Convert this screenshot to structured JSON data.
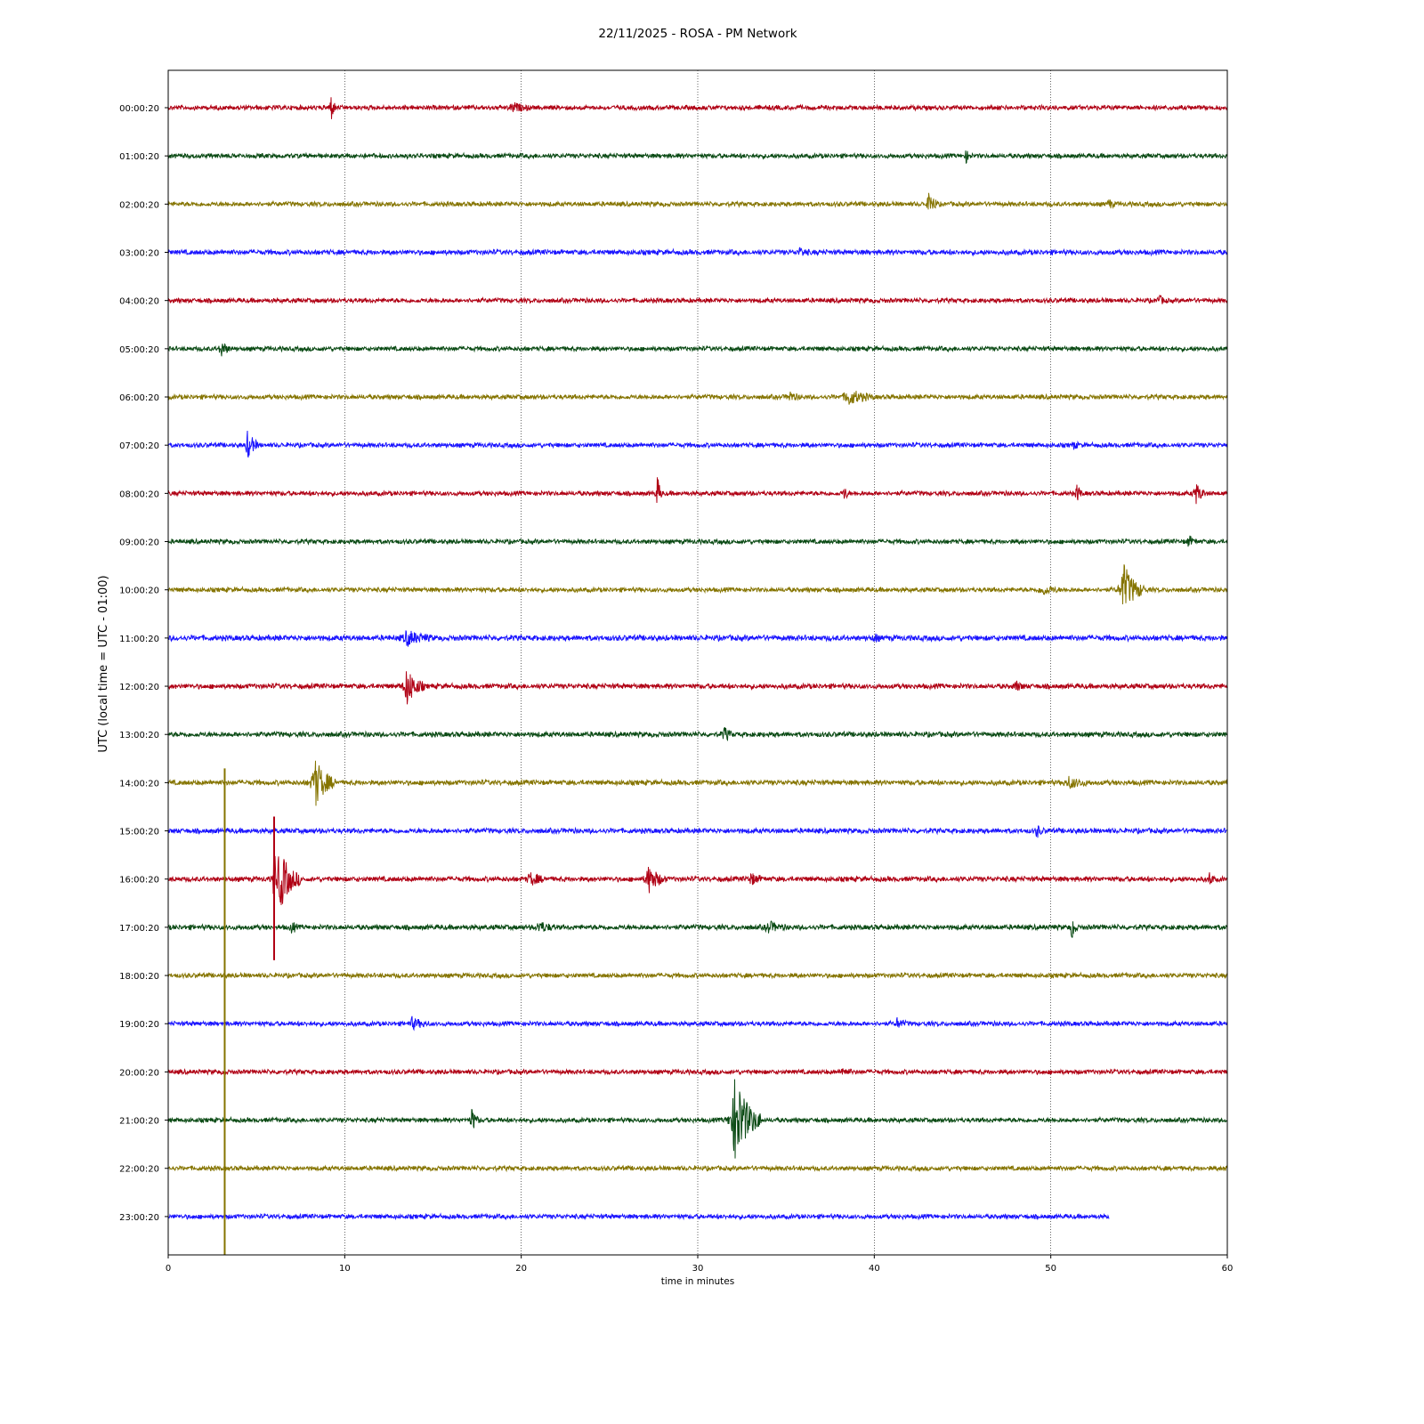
{
  "chart_data": {
    "type": "line",
    "title": "22/11/2025 - ROSA - PM Network",
    "xlabel": "time in minutes",
    "ylabel": "UTC (local time = UTC - 01:00)",
    "xlim": [
      0,
      60
    ],
    "x_ticks": [
      0,
      10,
      20,
      30,
      40,
      50,
      60
    ],
    "grid": "vertical dotted lines at x ticks",
    "colors": [
      "#b00014",
      "#0a4a14",
      "#857400",
      "#1a14ff"
    ],
    "series": [
      {
        "label": "00:00:20",
        "color": "#b00014",
        "end_minute": 60,
        "noise": 3,
        "events": [
          {
            "minute": 9.2,
            "amplitude": 18,
            "duration": 0.3
          },
          {
            "minute": 19.5,
            "amplitude": 5,
            "duration": 1
          }
        ]
      },
      {
        "label": "01:00:20",
        "color": "#0a4a14",
        "end_minute": 60,
        "noise": 3,
        "events": [
          {
            "minute": 45.2,
            "amplitude": 7,
            "duration": 0.3
          }
        ]
      },
      {
        "label": "02:00:20",
        "color": "#857400",
        "end_minute": 60,
        "noise": 3,
        "events": [
          {
            "minute": 43.1,
            "amplitude": 16,
            "duration": 0.5
          },
          {
            "minute": 53.3,
            "amplitude": 6,
            "duration": 0.3
          }
        ]
      },
      {
        "label": "03:00:20",
        "color": "#1a14ff",
        "end_minute": 60,
        "noise": 3.3,
        "events": [
          {
            "minute": 35.8,
            "amplitude": 5,
            "duration": 0.5
          }
        ]
      },
      {
        "label": "04:00:20",
        "color": "#b00014",
        "end_minute": 60,
        "noise": 3,
        "events": [
          {
            "minute": 56.1,
            "amplitude": 5,
            "duration": 0.5
          }
        ]
      },
      {
        "label": "05:00:20",
        "color": "#0a4a14",
        "end_minute": 60,
        "noise": 3,
        "events": [
          {
            "minute": 3.0,
            "amplitude": 10,
            "duration": 0.5
          }
        ]
      },
      {
        "label": "06:00:20",
        "color": "#857400",
        "end_minute": 60,
        "noise": 3,
        "events": [
          {
            "minute": 35.2,
            "amplitude": 6,
            "duration": 0.6
          },
          {
            "minute": 38.5,
            "amplitude": 9,
            "duration": 1.5
          }
        ]
      },
      {
        "label": "07:00:20",
        "color": "#1a14ff",
        "end_minute": 60,
        "noise": 3,
        "events": [
          {
            "minute": 4.5,
            "amplitude": 17,
            "duration": 0.6
          },
          {
            "minute": 51.3,
            "amplitude": 5,
            "duration": 0.3
          }
        ]
      },
      {
        "label": "08:00:20",
        "color": "#b00014",
        "end_minute": 60,
        "noise": 3,
        "events": [
          {
            "minute": 27.7,
            "amplitude": 20,
            "duration": 0.3
          },
          {
            "minute": 38.3,
            "amplitude": 8,
            "duration": 0.3
          },
          {
            "minute": 51.5,
            "amplitude": 13,
            "duration": 0.3
          },
          {
            "minute": 58.2,
            "amplitude": 12,
            "duration": 0.6
          }
        ]
      },
      {
        "label": "09:00:20",
        "color": "#0a4a14",
        "end_minute": 60,
        "noise": 3,
        "events": [
          {
            "minute": 57.8,
            "amplitude": 6,
            "duration": 0.5
          }
        ]
      },
      {
        "label": "10:00:20",
        "color": "#857400",
        "end_minute": 60,
        "noise": 3,
        "events": [
          {
            "minute": 49.5,
            "amplitude": 6,
            "duration": 1
          },
          {
            "minute": 54.1,
            "amplitude": 30,
            "duration": 1.2
          }
        ]
      },
      {
        "label": "11:00:20",
        "color": "#1a14ff",
        "end_minute": 60,
        "noise": 3.6,
        "events": [
          {
            "minute": 13.5,
            "amplitude": 8,
            "duration": 1.5
          },
          {
            "minute": 40.0,
            "amplitude": 6,
            "duration": 0.3
          }
        ]
      },
      {
        "label": "12:00:20",
        "color": "#b00014",
        "end_minute": 60,
        "noise": 3.3,
        "events": [
          {
            "minute": 13.5,
            "amplitude": 22,
            "duration": 1
          },
          {
            "minute": 48.0,
            "amplitude": 6,
            "duration": 0.5
          }
        ]
      },
      {
        "label": "13:00:20",
        "color": "#0a4a14",
        "end_minute": 60,
        "noise": 3.3,
        "events": [
          {
            "minute": 31.5,
            "amplitude": 8,
            "duration": 0.5
          }
        ]
      },
      {
        "label": "14:00:20",
        "color": "#857400",
        "end_minute": 60,
        "noise": 3.3,
        "events": [
          {
            "minute": 8.3,
            "amplitude": 28,
            "duration": 1.2
          },
          {
            "minute": 51.0,
            "amplitude": 6,
            "duration": 1.2
          }
        ]
      },
      {
        "label": "15:00:20",
        "color": "#1a14ff",
        "end_minute": 60,
        "noise": 3.3,
        "events": [
          {
            "minute": 49.2,
            "amplitude": 7,
            "duration": 0.4
          }
        ]
      },
      {
        "label": "16:00:20",
        "color": "#b00014",
        "end_minute": 60,
        "noise": 3.3,
        "events": [
          {
            "minute": 6.0,
            "amplitude": 90,
            "duration": 0.1
          },
          {
            "minute": 6.3,
            "amplitude": 35,
            "duration": 1.2
          },
          {
            "minute": 20.5,
            "amplitude": 7,
            "duration": 1
          },
          {
            "minute": 27.2,
            "amplitude": 16,
            "duration": 1
          },
          {
            "minute": 33.0,
            "amplitude": 6,
            "duration": 0.8
          },
          {
            "minute": 59.0,
            "amplitude": 8,
            "duration": 0.3
          }
        ]
      },
      {
        "label": "17:00:20",
        "color": "#0a4a14",
        "end_minute": 60,
        "noise": 3.3,
        "events": [
          {
            "minute": 7.0,
            "amplitude": 8,
            "duration": 0.3
          },
          {
            "minute": 21.0,
            "amplitude": 6,
            "duration": 1
          },
          {
            "minute": 34.0,
            "amplitude": 6,
            "duration": 1
          },
          {
            "minute": 51.2,
            "amplitude": 15,
            "duration": 0.3
          }
        ]
      },
      {
        "label": "18:00:20",
        "color": "#857400",
        "end_minute": 60,
        "noise": 3,
        "events": []
      },
      {
        "label": "19:00:20",
        "color": "#1a14ff",
        "end_minute": 60,
        "noise": 3,
        "events": [
          {
            "minute": 13.8,
            "amplitude": 6,
            "duration": 1
          },
          {
            "minute": 41.3,
            "amplitude": 6,
            "duration": 0.5
          }
        ]
      },
      {
        "label": "20:00:20",
        "color": "#b00014",
        "end_minute": 60,
        "noise": 3,
        "events": [
          {
            "minute": 38.2,
            "amplitude": 6,
            "duration": 0.5
          }
        ]
      },
      {
        "label": "21:00:20",
        "color": "#0a4a14",
        "end_minute": 60,
        "noise": 3,
        "events": [
          {
            "minute": 17.2,
            "amplitude": 14,
            "duration": 0.4
          },
          {
            "minute": 32.1,
            "amplitude": 50,
            "duration": 1.5
          }
        ]
      },
      {
        "label": "22:00:20",
        "color": "#857400",
        "end_minute": 60,
        "noise": 3,
        "events": [
          {
            "minute": 59.9,
            "amplitude": 8,
            "duration": 0.1
          }
        ]
      },
      {
        "label": "23:00:20",
        "color": "#1a14ff",
        "end_minute": 53.3,
        "noise": 3,
        "events": []
      }
    ],
    "spikes": [
      {
        "minute": 3.2,
        "from_row": "14:00:20",
        "to_row": "bottom",
        "color": "#857400"
      },
      {
        "minute": 6.0,
        "from_row": "15:00:20",
        "to_row": "17:00:20",
        "color": "#b00014"
      }
    ]
  }
}
